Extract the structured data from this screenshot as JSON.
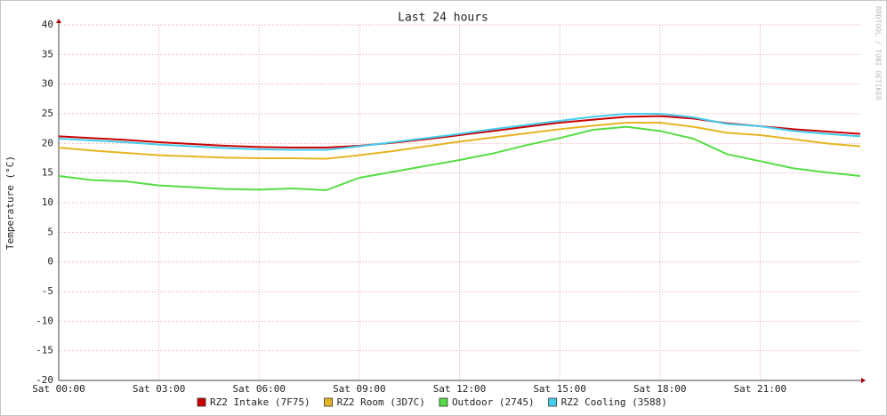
{
  "chart_data": {
    "type": "line",
    "title": "Last 24 hours",
    "y_label": "Temperature (°C)",
    "watermark": "RRDTOOL / TOBI OETIKER",
    "x": [
      0,
      1,
      2,
      3,
      4,
      5,
      6,
      7,
      8,
      9,
      10,
      11,
      12,
      13,
      14,
      15,
      16,
      17,
      18,
      19,
      20,
      21,
      22,
      23,
      24
    ],
    "xlim": [
      0,
      24
    ],
    "xticks": [
      {
        "value": 0,
        "label": "Sat 00:00"
      },
      {
        "value": 3,
        "label": "Sat 03:00"
      },
      {
        "value": 6,
        "label": "Sat 06:00"
      },
      {
        "value": 9,
        "label": "Sat 09:00"
      },
      {
        "value": 12,
        "label": "Sat 12:00"
      },
      {
        "value": 15,
        "label": "Sat 15:00"
      },
      {
        "value": 18,
        "label": "Sat 18:00"
      },
      {
        "value": 21,
        "label": "Sat 21:00"
      }
    ],
    "ylim": [
      -20,
      40
    ],
    "yticks": [
      -20,
      -15,
      -10,
      -5,
      0,
      5,
      10,
      15,
      20,
      25,
      30,
      35,
      40
    ],
    "grid": true,
    "legend": "bottom",
    "series": [
      {
        "name": "RZ2 Intake (7F75)",
        "color": "#cc0000",
        "values": [
          21.2,
          20.9,
          20.6,
          20.2,
          19.9,
          19.6,
          19.4,
          19.3,
          19.3,
          19.6,
          20.1,
          20.7,
          21.4,
          22.1,
          22.8,
          23.5,
          24.0,
          24.5,
          24.6,
          24.2,
          23.4,
          22.9,
          22.4,
          22.0,
          21.6
        ]
      },
      {
        "name": "RZ2 Room (3D7C)",
        "color": "#e6b422",
        "values": [
          19.3,
          18.8,
          18.4,
          18.0,
          17.8,
          17.6,
          17.5,
          17.5,
          17.4,
          18.0,
          18.7,
          19.5,
          20.3,
          21.0,
          21.7,
          22.4,
          23.0,
          23.5,
          23.5,
          22.8,
          21.8,
          21.4,
          20.7,
          20.0,
          19.5
        ]
      },
      {
        "name": "Outdoor (2745)",
        "color": "#55dd44",
        "values": [
          14.5,
          13.8,
          13.6,
          12.9,
          12.6,
          12.3,
          12.2,
          12.4,
          12.1,
          14.2,
          15.2,
          16.2,
          17.2,
          18.3,
          19.7,
          20.9,
          22.3,
          22.8,
          22.1,
          20.8,
          18.2,
          17.0,
          15.8,
          15.1,
          14.5
        ]
      },
      {
        "name": "RZ2 Cooling (3588)",
        "color": "#44ccee",
        "values": [
          20.8,
          20.5,
          20.2,
          19.8,
          19.5,
          19.2,
          19.0,
          18.9,
          18.9,
          19.5,
          20.2,
          20.9,
          21.6,
          22.4,
          23.1,
          23.8,
          24.5,
          25.0,
          25.0,
          24.4,
          23.3,
          22.9,
          22.1,
          21.6,
          21.2
        ]
      }
    ]
  }
}
